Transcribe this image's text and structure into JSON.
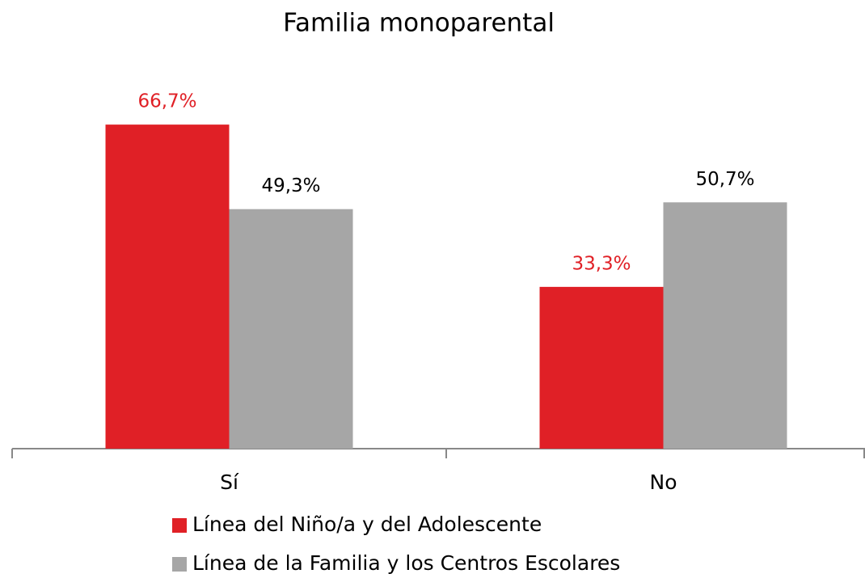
{
  "chart_data": {
    "type": "bar",
    "title": "Familia monoparental",
    "categories": [
      "Sí",
      "No"
    ],
    "series": [
      {
        "name": "Línea del Niño/a y del Adolescente",
        "color": "#e02026",
        "values": [
          66.7,
          33.3
        ],
        "value_labels": [
          "66,7%",
          "33,3%"
        ]
      },
      {
        "name": "Línea de la Familia y los Centros Escolares",
        "color": "#a6a6a6",
        "values": [
          49.3,
          50.7
        ],
        "value_labels": [
          "49,3%",
          "50,7%"
        ]
      }
    ]
  }
}
